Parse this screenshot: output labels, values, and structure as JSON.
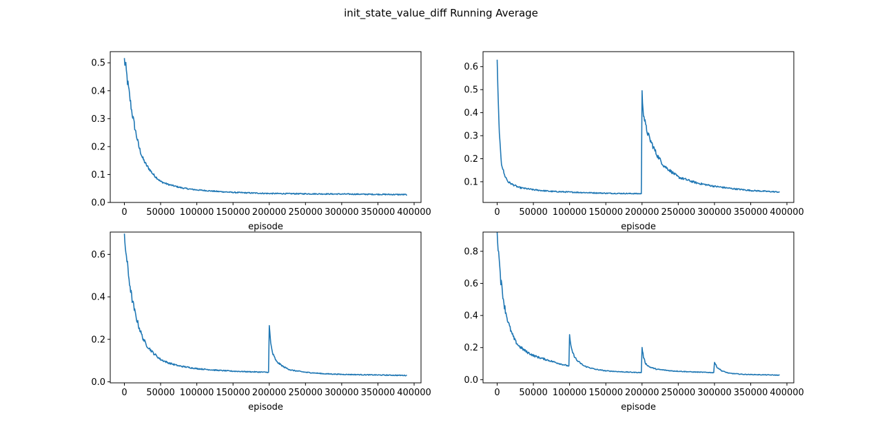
{
  "figure": {
    "title": "init_state_value_diff Running Average"
  },
  "colors": {
    "line": "#1f77b4",
    "axes": "#000000",
    "background": "#ffffff"
  },
  "chart_data": [
    {
      "type": "line",
      "xlabel": "episode",
      "ylabel": "",
      "xlim": [
        -19500,
        409500
      ],
      "ylim": [
        0.0,
        0.54
      ],
      "xticks": [
        0,
        50000,
        100000,
        150000,
        200000,
        250000,
        300000,
        350000,
        400000
      ],
      "xtick_labels": [
        "0",
        "50000",
        "100000",
        "150000",
        "200000",
        "250000",
        "300000",
        "350000",
        "400000"
      ],
      "yticks": [
        0.0,
        0.1,
        0.2,
        0.3,
        0.4,
        0.5
      ],
      "ytick_labels": [
        "0.0",
        "0.1",
        "0.2",
        "0.3",
        "0.4",
        "0.5"
      ],
      "grid": false,
      "x": [
        0,
        2000,
        5000,
        10000,
        15000,
        20000,
        25000,
        30000,
        40000,
        50000,
        60000,
        70000,
        80000,
        90000,
        100000,
        125000,
        150000,
        175000,
        200000,
        250000,
        300000,
        350000,
        390000
      ],
      "y": [
        0.51,
        0.48,
        0.42,
        0.33,
        0.26,
        0.2,
        0.16,
        0.135,
        0.1,
        0.075,
        0.065,
        0.058,
        0.052,
        0.048,
        0.045,
        0.04,
        0.036,
        0.034,
        0.032,
        0.031,
        0.03,
        0.029,
        0.028
      ]
    },
    {
      "type": "line",
      "xlabel": "episode",
      "ylabel": "",
      "xlim": [
        -19500,
        409500
      ],
      "ylim": [
        0.01,
        0.665
      ],
      "xticks": [
        0,
        50000,
        100000,
        150000,
        200000,
        250000,
        300000,
        350000,
        400000
      ],
      "xtick_labels": [
        "0",
        "50000",
        "100000",
        "150000",
        "200000",
        "250000",
        "300000",
        "350000",
        "400000"
      ],
      "yticks": [
        0.1,
        0.2,
        0.3,
        0.4,
        0.5,
        0.6
      ],
      "ytick_labels": [
        "0.1",
        "0.2",
        "0.3",
        "0.4",
        "0.5",
        "0.6"
      ],
      "grid": false,
      "x": [
        0,
        1000,
        3000,
        6000,
        10000,
        15000,
        20000,
        30000,
        50000,
        75000,
        100000,
        150000,
        198000,
        199000,
        200000,
        202000,
        205000,
        210000,
        220000,
        230000,
        250000,
        275000,
        300000,
        325000,
        350000,
        390000
      ],
      "y": [
        0.63,
        0.5,
        0.3,
        0.18,
        0.13,
        0.1,
        0.09,
        0.075,
        0.065,
        0.058,
        0.055,
        0.05,
        0.048,
        0.048,
        0.48,
        0.4,
        0.34,
        0.29,
        0.22,
        0.17,
        0.12,
        0.095,
        0.08,
        0.07,
        0.062,
        0.055
      ]
    },
    {
      "type": "line",
      "xlabel": "episode",
      "ylabel": "",
      "xlim": [
        -19500,
        409500
      ],
      "ylim": [
        -0.005,
        0.705
      ],
      "xticks": [
        0,
        50000,
        100000,
        150000,
        200000,
        250000,
        300000,
        350000,
        400000
      ],
      "xtick_labels": [
        "0",
        "50000",
        "100000",
        "150000",
        "200000",
        "250000",
        "300000",
        "350000",
        "400000"
      ],
      "yticks": [
        0.0,
        0.2,
        0.4,
        0.6
      ],
      "ytick_labels": [
        "0.0",
        "0.2",
        "0.4",
        "0.6"
      ],
      "grid": false,
      "x": [
        0,
        2000,
        5000,
        10000,
        15000,
        20000,
        25000,
        30000,
        40000,
        50000,
        60000,
        75000,
        100000,
        125000,
        150000,
        175000,
        198000,
        199000,
        200000,
        202000,
        205000,
        210000,
        220000,
        230000,
        250000,
        275000,
        300000,
        350000,
        390000
      ],
      "y": [
        0.67,
        0.62,
        0.52,
        0.4,
        0.32,
        0.26,
        0.21,
        0.175,
        0.135,
        0.105,
        0.09,
        0.075,
        0.062,
        0.055,
        0.05,
        0.047,
        0.045,
        0.045,
        0.26,
        0.18,
        0.13,
        0.095,
        0.07,
        0.055,
        0.045,
        0.038,
        0.035,
        0.032,
        0.03
      ]
    },
    {
      "type": "line",
      "xlabel": "episode",
      "ylabel": "",
      "xlim": [
        -19500,
        409500
      ],
      "ylim": [
        -0.02,
        0.92
      ],
      "xticks": [
        0,
        50000,
        100000,
        150000,
        200000,
        250000,
        300000,
        350000,
        400000
      ],
      "xtick_labels": [
        "0",
        "50000",
        "100000",
        "150000",
        "200000",
        "250000",
        "300000",
        "350000",
        "400000"
      ],
      "yticks": [
        0.0,
        0.2,
        0.4,
        0.6,
        0.8
      ],
      "ytick_labels": [
        "0.0",
        "0.2",
        "0.4",
        "0.6",
        "0.8"
      ],
      "grid": false,
      "x": [
        0,
        2000,
        5000,
        10000,
        15000,
        20000,
        25000,
        30000,
        40000,
        50000,
        60000,
        75000,
        90000,
        99000,
        100000,
        102000,
        105000,
        110000,
        120000,
        135000,
        150000,
        175000,
        199000,
        200000,
        202000,
        205000,
        210000,
        220000,
        240000,
        270000,
        299000,
        300000,
        303000,
        310000,
        320000,
        340000,
        370000,
        390000
      ],
      "y": [
        0.9,
        0.8,
        0.62,
        0.46,
        0.36,
        0.29,
        0.24,
        0.21,
        0.175,
        0.15,
        0.135,
        0.115,
        0.095,
        0.085,
        0.27,
        0.2,
        0.16,
        0.12,
        0.085,
        0.065,
        0.055,
        0.048,
        0.044,
        0.2,
        0.14,
        0.1,
        0.08,
        0.065,
        0.055,
        0.048,
        0.044,
        0.11,
        0.08,
        0.055,
        0.04,
        0.033,
        0.03,
        0.028
      ]
    }
  ]
}
